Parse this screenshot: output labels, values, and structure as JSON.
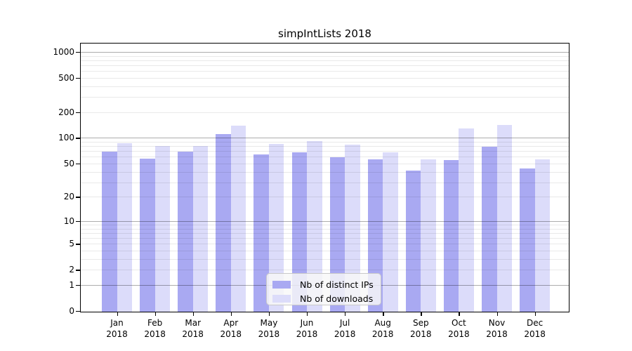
{
  "chart_data": {
    "type": "bar",
    "title": "simpIntLists 2018",
    "categories": [
      "Jan",
      "Feb",
      "Mar",
      "Apr",
      "May",
      "Jun",
      "Jul",
      "Aug",
      "Sep",
      "Oct",
      "Nov",
      "Dec"
    ],
    "x_year": "2018",
    "series": [
      {
        "name": "Nb of distinct IPs",
        "color": "#a9a9f2",
        "values": [
          69,
          57,
          69,
          111,
          64,
          68,
          59,
          56,
          41,
          55,
          79,
          44
        ]
      },
      {
        "name": "Nb of downloads",
        "color": "#dcdcfa",
        "values": [
          87,
          80,
          80,
          138,
          85,
          92,
          84,
          68,
          56,
          128,
          141,
          56
        ]
      }
    ],
    "y_ticks": [
      0,
      1,
      2,
      5,
      10,
      20,
      50,
      100,
      200,
      500,
      1000
    ],
    "y_scale": "log1p",
    "ylim": [
      0,
      1175
    ],
    "grid": "on",
    "grid_major_at": [
      1,
      10,
      100,
      1000
    ],
    "legend_position": "lower-center",
    "axis_color": "#000000",
    "background_color": "#ffffff"
  }
}
